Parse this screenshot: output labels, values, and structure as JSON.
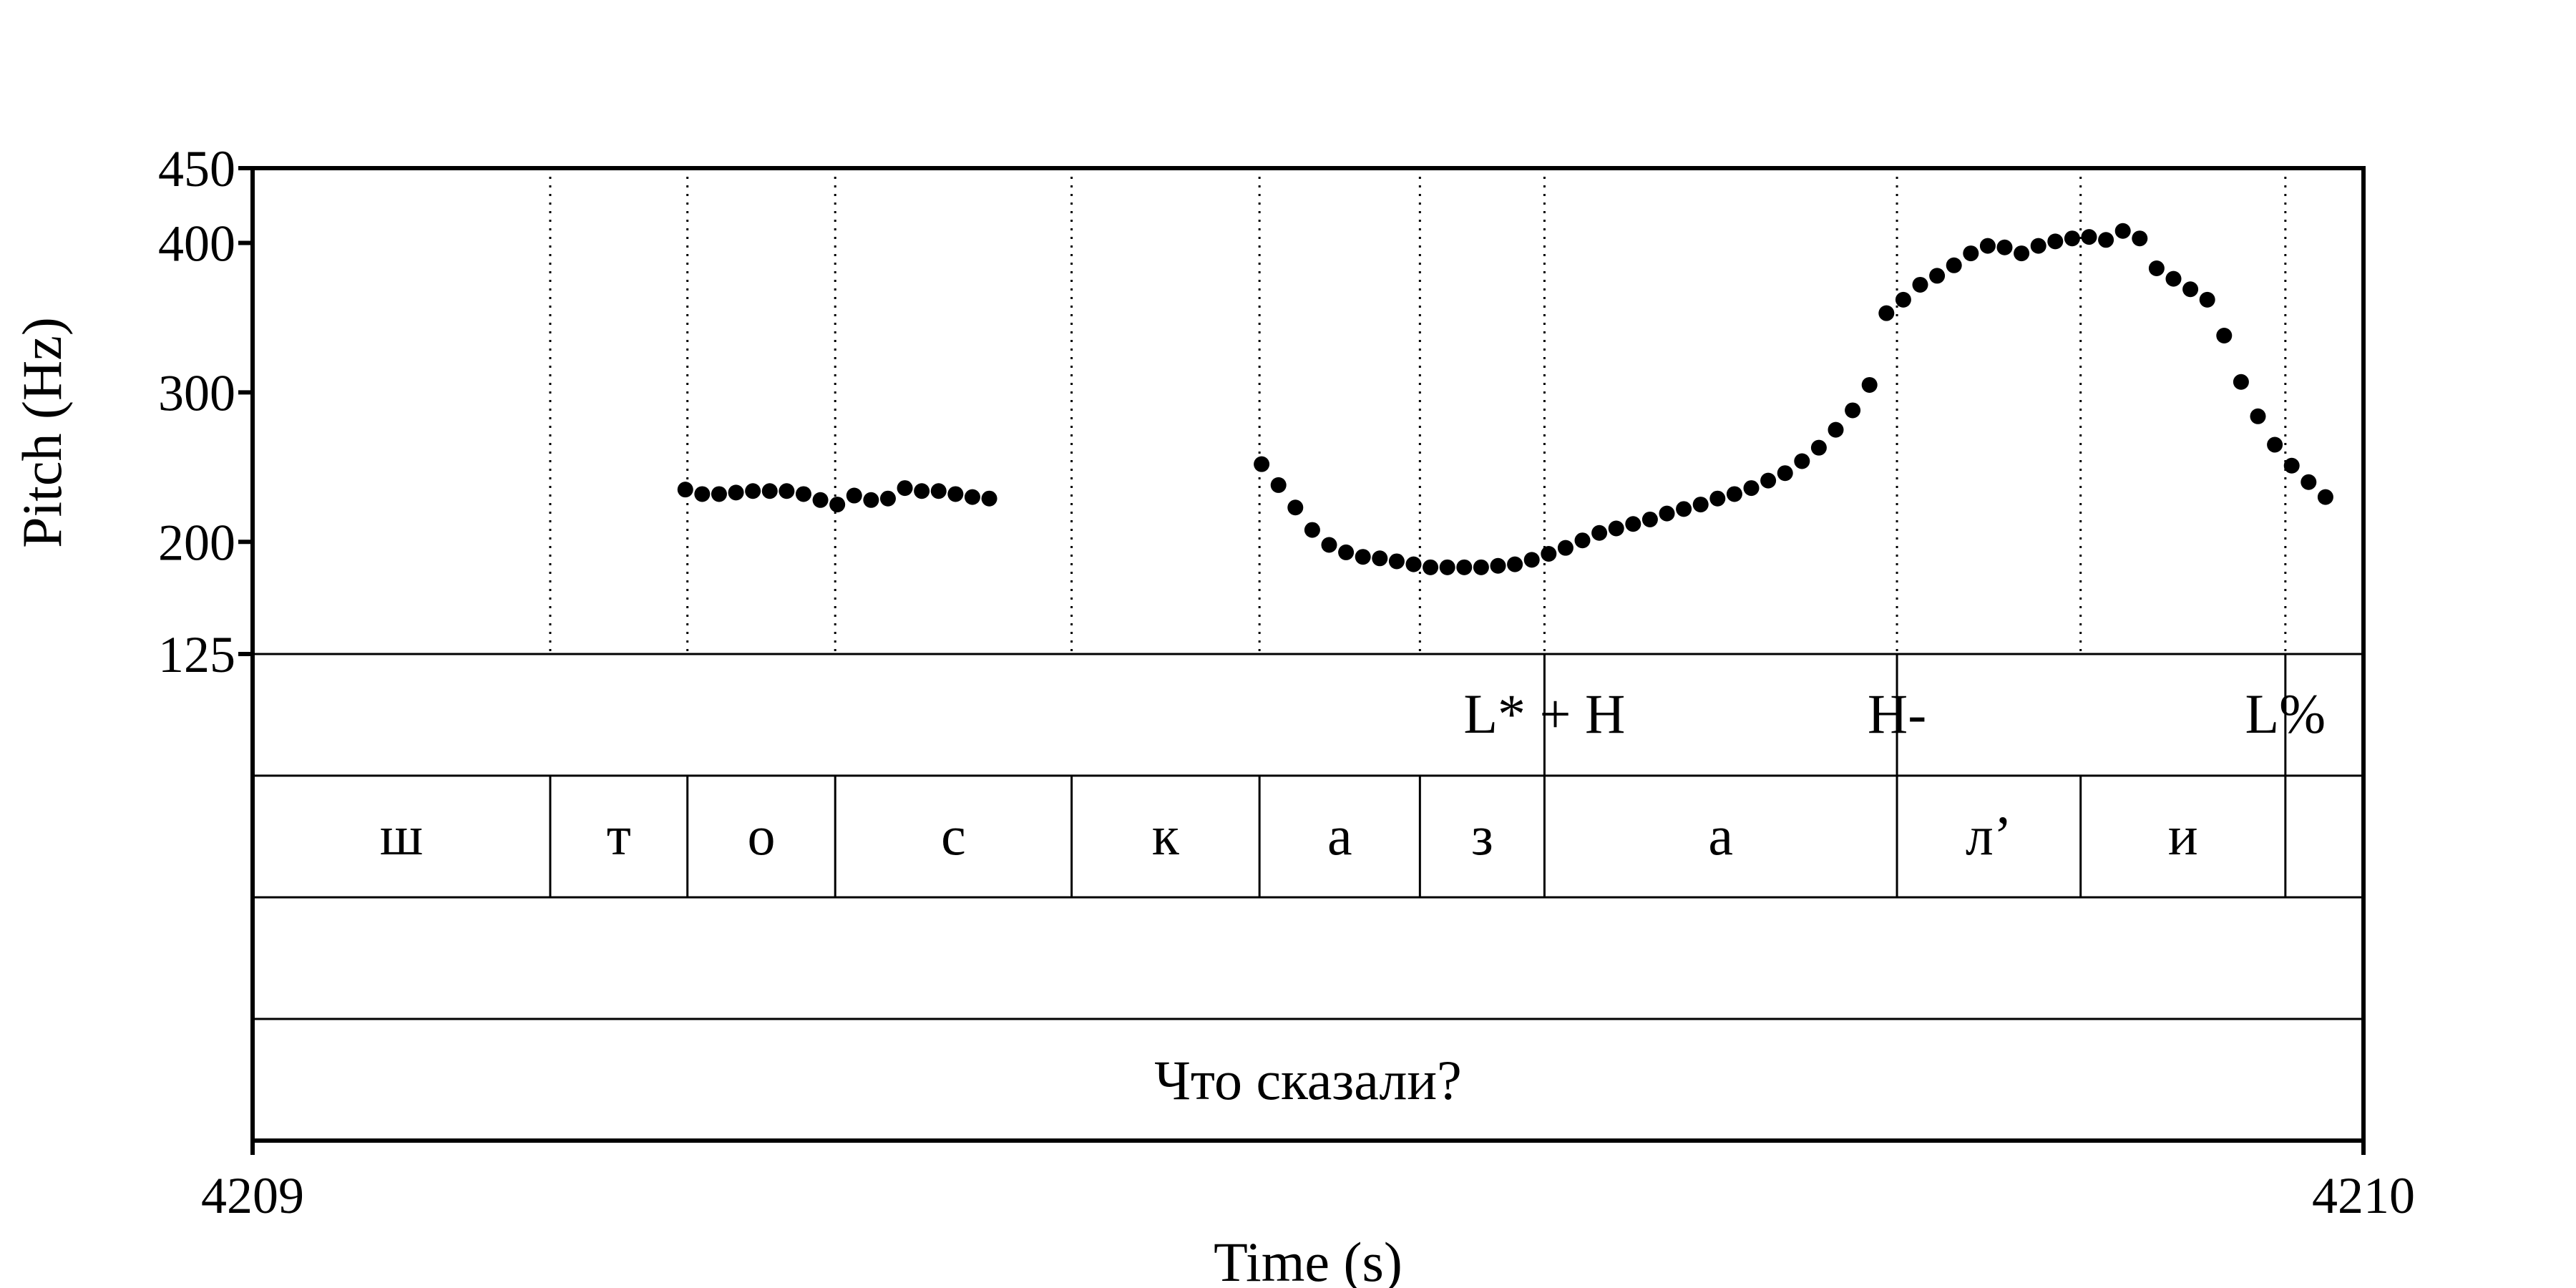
{
  "chart_data": {
    "type": "scatter",
    "xlabel": "Time (s)",
    "ylabel": "Pitch (Hz)",
    "xlim": [
      4209,
      4210
    ],
    "ylim": [
      125,
      450
    ],
    "xtick_labels": [
      "4209",
      "4210"
    ],
    "yticks": [
      125,
      200,
      300,
      400,
      450
    ],
    "ytick_labels": [
      "125",
      "200",
      "300",
      "400",
      "450"
    ],
    "segment_boundaries": [
      4209.141,
      4209.206,
      4209.276,
      4209.388,
      4209.477,
      4209.553,
      4209.612,
      4209.779,
      4209.866,
      4209.963
    ],
    "pitch_points": [
      [
        4209.205,
        235
      ],
      [
        4209.213,
        232
      ],
      [
        4209.221,
        232
      ],
      [
        4209.229,
        233
      ],
      [
        4209.237,
        234
      ],
      [
        4209.245,
        234
      ],
      [
        4209.253,
        234
      ],
      [
        4209.261,
        232
      ],
      [
        4209.269,
        228
      ],
      [
        4209.277,
        225
      ],
      [
        4209.285,
        231
      ],
      [
        4209.293,
        228
      ],
      [
        4209.301,
        229
      ],
      [
        4209.309,
        236
      ],
      [
        4209.317,
        234
      ],
      [
        4209.325,
        234
      ],
      [
        4209.333,
        232
      ],
      [
        4209.341,
        230
      ],
      [
        4209.349,
        229
      ],
      [
        4209.478,
        252
      ],
      [
        4209.486,
        238
      ],
      [
        4209.494,
        223
      ],
      [
        4209.502,
        208
      ],
      [
        4209.51,
        198
      ],
      [
        4209.518,
        193
      ],
      [
        4209.526,
        190
      ],
      [
        4209.534,
        189
      ],
      [
        4209.542,
        187
      ],
      [
        4209.55,
        185
      ],
      [
        4209.558,
        183
      ],
      [
        4209.566,
        183
      ],
      [
        4209.574,
        183
      ],
      [
        4209.582,
        183
      ],
      [
        4209.59,
        184
      ],
      [
        4209.598,
        185
      ],
      [
        4209.606,
        188
      ],
      [
        4209.614,
        192
      ],
      [
        4209.622,
        196
      ],
      [
        4209.63,
        201
      ],
      [
        4209.638,
        206
      ],
      [
        4209.646,
        209
      ],
      [
        4209.654,
        212
      ],
      [
        4209.662,
        215
      ],
      [
        4209.67,
        219
      ],
      [
        4209.678,
        222
      ],
      [
        4209.686,
        225
      ],
      [
        4209.694,
        229
      ],
      [
        4209.702,
        232
      ],
      [
        4209.71,
        236
      ],
      [
        4209.718,
        241
      ],
      [
        4209.726,
        246
      ],
      [
        4209.734,
        254
      ],
      [
        4209.742,
        263
      ],
      [
        4209.75,
        275
      ],
      [
        4209.758,
        288
      ],
      [
        4209.766,
        305
      ],
      [
        4209.774,
        353
      ],
      [
        4209.782,
        362
      ],
      [
        4209.79,
        372
      ],
      [
        4209.798,
        378
      ],
      [
        4209.806,
        385
      ],
      [
        4209.814,
        393
      ],
      [
        4209.822,
        398
      ],
      [
        4209.83,
        397
      ],
      [
        4209.838,
        393
      ],
      [
        4209.846,
        398
      ],
      [
        4209.854,
        401
      ],
      [
        4209.862,
        403
      ],
      [
        4209.87,
        404
      ],
      [
        4209.878,
        402
      ],
      [
        4209.886,
        408
      ],
      [
        4209.894,
        403
      ],
      [
        4209.902,
        383
      ],
      [
        4209.91,
        376
      ],
      [
        4209.918,
        369
      ],
      [
        4209.926,
        362
      ],
      [
        4209.934,
        338
      ],
      [
        4209.942,
        307
      ],
      [
        4209.95,
        284
      ],
      [
        4209.958,
        265
      ],
      [
        4209.966,
        251
      ],
      [
        4209.974,
        240
      ],
      [
        4209.982,
        230
      ]
    ],
    "tiers": {
      "tones": [
        {
          "label": "L* + H",
          "time": 4209.612
        },
        {
          "label": "H-",
          "time": 4209.779
        },
        {
          "label": "L%",
          "time": 4209.963
        }
      ],
      "segments": [
        "ш",
        "т",
        "о",
        "с",
        "к",
        "а",
        "з",
        "а",
        "л’",
        "и"
      ],
      "blank": "",
      "sentence": "Что сказали?"
    }
  }
}
